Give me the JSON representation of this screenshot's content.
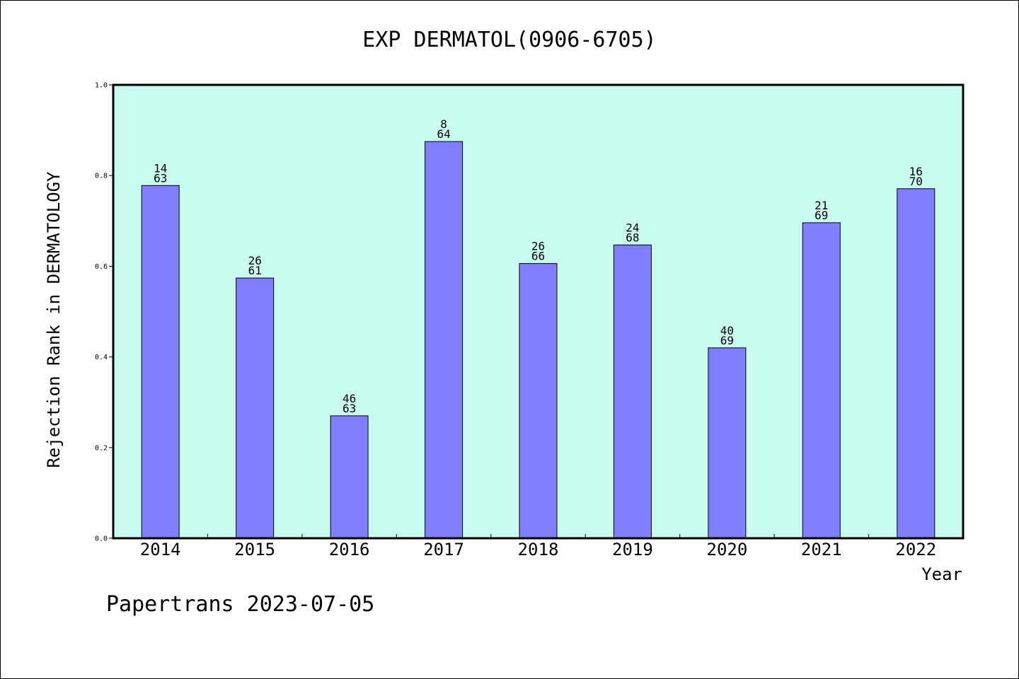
{
  "chart_data": {
    "type": "bar",
    "title": "EXP DERMATOL(0906-6705)",
    "xlabel": "Year",
    "ylabel": "Rejection Rank in DERMATOLOGY",
    "ylim": [
      0,
      1.0
    ],
    "yticks": [
      "0.0",
      "0.2",
      "0.4",
      "0.6",
      "0.8",
      "1.0"
    ],
    "categories": [
      "2014",
      "2015",
      "2016",
      "2017",
      "2018",
      "2019",
      "2020",
      "2021",
      "2022"
    ],
    "values": [
      0.778,
      0.574,
      0.27,
      0.875,
      0.606,
      0.647,
      0.42,
      0.696,
      0.771
    ],
    "rank_labels": [
      {
        "rank": "14",
        "total": "63"
      },
      {
        "rank": "26",
        "total": "61"
      },
      {
        "rank": "46",
        "total": "63"
      },
      {
        "rank": "8",
        "total": "64"
      },
      {
        "rank": "26",
        "total": "66"
      },
      {
        "rank": "24",
        "total": "68"
      },
      {
        "rank": "40",
        "total": "69"
      },
      {
        "rank": "21",
        "total": "69"
      },
      {
        "rank": "16",
        "total": "70"
      }
    ],
    "grid": false,
    "colors": {
      "plot_background": "#c8fcee",
      "bar_fill": "#8080ff",
      "bar_stroke": "#000000"
    }
  },
  "footer": "Papertrans 2023-07-05"
}
